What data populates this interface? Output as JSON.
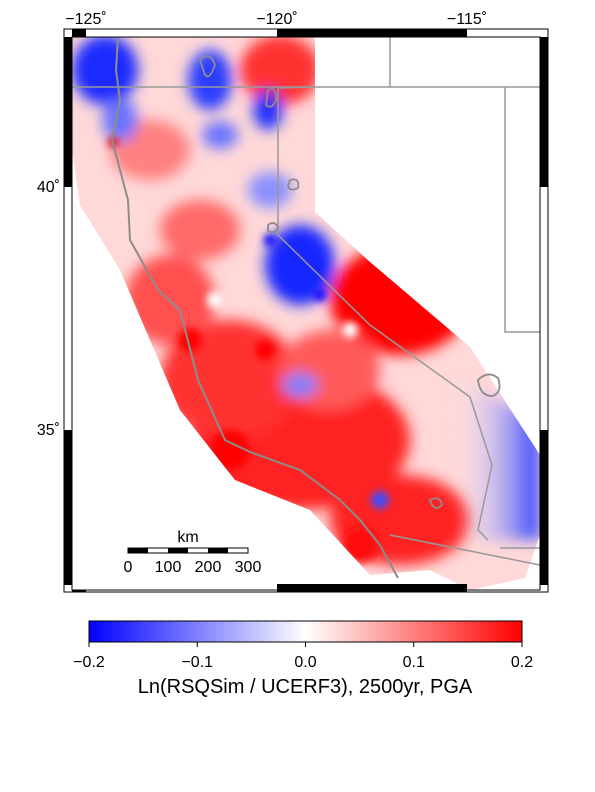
{
  "map": {
    "lon_ticks": [
      {
        "lon": -125,
        "label": "−125˚"
      },
      {
        "lon": -120,
        "label": "−120˚"
      },
      {
        "lon": -115,
        "label": "−115˚"
      }
    ],
    "lat_ticks": [
      {
        "lat": 40,
        "label": "40˚"
      },
      {
        "lat": 35,
        "label": "35˚"
      }
    ],
    "extent": {
      "lon_min": -125.5,
      "lon_max": -113.3,
      "lat_min": 31.9,
      "lat_max": 43.1
    },
    "colors": {
      "negative": "#0000ff",
      "neutral": "#ffffff",
      "positive": "#ff0000",
      "coast": "#8c8c8c",
      "borders": "#999999"
    }
  },
  "scale_bar": {
    "title": "km",
    "labels": [
      "0",
      "100",
      "200",
      "300"
    ]
  },
  "colorbar": {
    "tick_labels": [
      "−0.2",
      "−0.1",
      "0.0",
      "0.1",
      "0.2"
    ],
    "tick_values": [
      -0.2,
      -0.1,
      0.0,
      0.1,
      0.2
    ],
    "range": [
      -0.2,
      0.2
    ],
    "title": "Ln(RSQSim / UCERF3), 2500yr, PGA"
  }
}
